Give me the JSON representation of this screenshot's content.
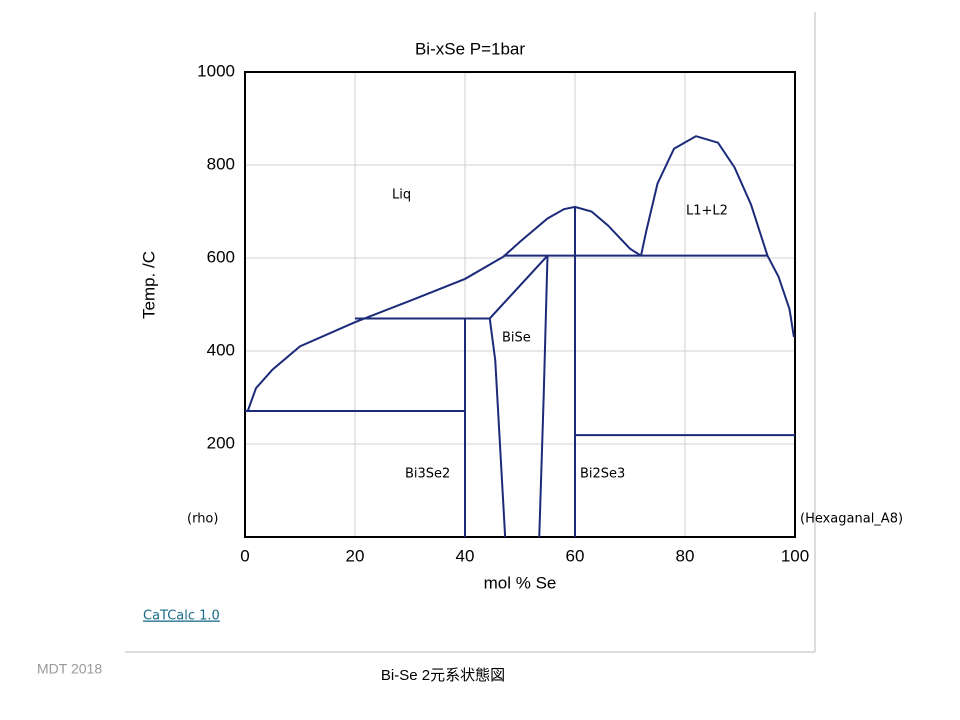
{
  "chart_data": {
    "type": "line",
    "title": "Bi-xSe     P=1bar",
    "xlabel": "mol %  Se",
    "ylabel": "Temp.   /C",
    "xlim": [
      0,
      100
    ],
    "xticks": [
      0,
      20,
      40,
      60,
      80,
      100
    ],
    "ylim": [
      0,
      1000
    ],
    "yticks": [
      200,
      400,
      600,
      800,
      1000
    ],
    "grid": true,
    "color": "#1c2a7a",
    "series": [
      {
        "x": [
          0.5,
          2,
          5,
          10,
          20,
          30,
          40,
          47
        ],
        "values": [
          271,
          320,
          360,
          410,
          462,
          508,
          555,
          603
        ]
      },
      {
        "x": [
          47,
          50,
          55,
          58,
          60,
          63,
          66,
          70,
          72
        ],
        "values": [
          603,
          635,
          685,
          705,
          710,
          700,
          670,
          620,
          605
        ]
      },
      {
        "x": [
          72,
          73,
          75,
          78,
          82,
          86,
          89,
          92,
          95
        ],
        "values": [
          605,
          660,
          760,
          835,
          862,
          848,
          795,
          715,
          605
        ]
      },
      {
        "x": [
          95,
          97,
          99,
          99.8
        ],
        "values": [
          605,
          560,
          490,
          430
        ]
      },
      {
        "x": [
          0,
          40
        ],
        "values": [
          271,
          271
        ]
      },
      {
        "x": [
          20,
          44.5
        ],
        "values": [
          470,
          470
        ]
      },
      {
        "x": [
          47,
          95
        ],
        "values": [
          605,
          605
        ]
      },
      {
        "x": [
          60,
          100
        ],
        "values": [
          219,
          219
        ]
      },
      {
        "x": [
          40,
          40
        ],
        "values": [
          470,
          0
        ]
      },
      {
        "x": [
          60,
          60
        ],
        "values": [
          710,
          0
        ]
      },
      {
        "x": [
          44.5,
          55
        ],
        "values": [
          470,
          605
        ]
      },
      {
        "x": [
          44.5,
          45.5,
          47.3
        ],
        "values": [
          470,
          380,
          0
        ]
      },
      {
        "x": [
          55,
          54.3,
          53.5
        ],
        "values": [
          605,
          300,
          0
        ]
      }
    ],
    "annotations": [
      "Liq",
      "L1+L2",
      "BiSe",
      "Bi3Se2",
      "Bi2Se3",
      "(rho)",
      "(Hexaganal_A8)"
    ],
    "link": "CaTCalc 1.0",
    "footer_left": "MDT   2018",
    "footer_caption": "Bi-Se  2元系状態図"
  }
}
